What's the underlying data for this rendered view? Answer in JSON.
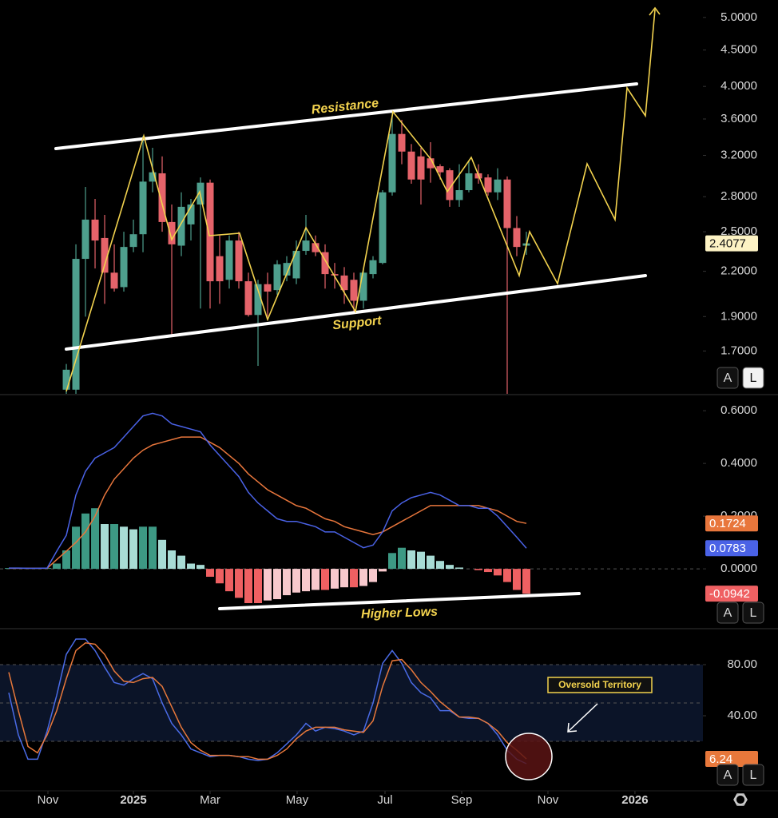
{
  "chart_data": [
    {
      "type": "candlestick",
      "log_scale": true,
      "up_color": "#4e9f8d",
      "down_color": "#e5636a",
      "open": [
        null,
        null,
        null,
        null,
        null,
        null,
        1.5,
        1.5,
        2.29,
        2.6,
        2.45,
        2.19,
        2.09,
        2.38,
        2.48,
        2.94,
        3.02,
        2.58,
        2.39,
        2.56,
        2.73,
        2.93,
        2.31,
        2.14,
        2.43,
        2.13,
        1.91,
        2.11,
        2.07,
        2.17,
        2.15,
        2.35,
        2.41,
        2.34,
        2.18,
        2.17,
        2.14,
        2.0,
        2.18,
        2.26,
        2.84,
        3.43,
        3.24,
        3.19,
        3.17,
        3.09,
        3.05,
        2.77,
        2.86,
        3.02,
        2.98,
        2.84,
        2.96,
        2.53,
        2.39
      ],
      "high": [
        null,
        null,
        null,
        null,
        null,
        null,
        1.63,
        2.4,
        2.89,
        2.78,
        2.64,
        2.4,
        2.5,
        2.6,
        3.41,
        3.28,
        3.19,
        2.73,
        2.84,
        2.78,
        2.98,
        2.96,
        2.47,
        2.47,
        2.5,
        2.19,
        2.14,
        2.19,
        2.28,
        2.31,
        2.43,
        2.64,
        2.47,
        2.4,
        2.26,
        2.23,
        2.19,
        2.22,
        2.31,
        2.86,
        3.68,
        3.59,
        3.32,
        3.28,
        3.34,
        3.11,
        3.07,
        3.11,
        3.15,
        3.11,
        3.01,
        3.07,
        2.99,
        2.63,
        2.5
      ],
      "low": [
        null,
        null,
        null,
        null,
        null,
        null,
        1.48,
        1.48,
        1.9,
        2.22,
        1.98,
        2.06,
        2.06,
        2.34,
        2.34,
        2.84,
        2.5,
        1.79,
        2.31,
        2.43,
        1.95,
        1.95,
        1.98,
        2.08,
        2.08,
        1.9,
        1.62,
        1.9,
        2.04,
        2.13,
        2.11,
        2.32,
        2.31,
        2.08,
        2.08,
        1.98,
        1.93,
        1.95,
        2.15,
        2.25,
        2.81,
        3.11,
        2.92,
        2.73,
        2.93,
        2.96,
        2.71,
        2.71,
        2.84,
        2.92,
        2.81,
        2.77,
        1.48,
        2.31,
        2.32
      ],
      "close": [
        null,
        null,
        null,
        null,
        null,
        null,
        1.6,
        2.29,
        2.6,
        2.43,
        2.19,
        2.08,
        2.38,
        2.48,
        2.94,
        3.03,
        2.58,
        2.4,
        2.71,
        2.73,
        2.93,
        2.13,
        2.13,
        2.43,
        2.13,
        1.91,
        2.11,
        2.06,
        2.25,
        2.26,
        2.35,
        2.43,
        2.34,
        2.18,
        2.17,
        2.07,
        2.0,
        2.19,
        2.28,
        2.84,
        3.43,
        3.24,
        2.96,
        2.96,
        3.07,
        3.03,
        2.77,
        2.86,
        3.02,
        2.97,
        2.84,
        2.96,
        2.53,
        2.38,
        2.4077
      ],
      "ylim": [
        1.48,
        5.29
      ],
      "yticks": [
        {
          "value": 5,
          "label": "5.0000"
        },
        {
          "value": 4.5,
          "label": "4.5000"
        },
        {
          "value": 4,
          "label": "4.0000"
        },
        {
          "value": 3.6,
          "label": "3.6000"
        },
        {
          "value": 3.2,
          "label": "3.2000"
        },
        {
          "value": 2.8,
          "label": "2.8000"
        },
        {
          "value": 2.5,
          "label": "2.5000"
        },
        {
          "value": 2.2,
          "label": "2.2000"
        },
        {
          "value": 1.9,
          "label": "1.9000"
        },
        {
          "value": 1.7,
          "label": "1.7000"
        }
      ],
      "annotations": [
        "Resistance",
        "Support"
      ],
      "buttons": [
        "A",
        "L"
      ]
    },
    {
      "type": "macd",
      "macd": {
        "color": "#4a62e6",
        "values": [
          0.003,
          0.003,
          0.002,
          0.002,
          0.003,
          0.067,
          0.127,
          0.28,
          0.37,
          0.42,
          0.44,
          0.46,
          0.5,
          0.54,
          0.58,
          0.59,
          0.58,
          0.55,
          0.54,
          0.53,
          0.52,
          0.47,
          0.43,
          0.39,
          0.35,
          0.29,
          0.25,
          0.22,
          0.19,
          0.18,
          0.18,
          0.17,
          0.16,
          0.14,
          0.14,
          0.12,
          0.1,
          0.08,
          0.09,
          0.14,
          0.22,
          0.25,
          0.27,
          0.28,
          0.29,
          0.28,
          0.26,
          0.24,
          0.24,
          0.23,
          0.23,
          0.2,
          0.16,
          0.12,
          0.0783
        ]
      },
      "signal": {
        "color": "#e8763c",
        "values": [
          0.002,
          0.002,
          0.002,
          0.002,
          0.002,
          0.035,
          0.067,
          0.1,
          0.14,
          0.2,
          0.28,
          0.34,
          0.38,
          0.42,
          0.45,
          0.47,
          0.48,
          0.49,
          0.5,
          0.5,
          0.5,
          0.48,
          0.46,
          0.43,
          0.4,
          0.36,
          0.33,
          0.3,
          0.28,
          0.26,
          0.24,
          0.23,
          0.21,
          0.19,
          0.18,
          0.16,
          0.15,
          0.14,
          0.13,
          0.14,
          0.16,
          0.18,
          0.2,
          0.22,
          0.24,
          0.24,
          0.24,
          0.24,
          0.24,
          0.24,
          0.23,
          0.22,
          0.2,
          0.18,
          0.1724
        ]
      },
      "histogram": {
        "colors": {
          "up_rising": "#3d9984",
          "up_falling": "#a8dcd5",
          "down_falling": "#ef6062",
          "down_rising": "#f8c9cd"
        },
        "values": [
          0.003,
          0.004,
          0.002,
          0.001,
          0.003,
          0.02,
          0.07,
          0.16,
          0.21,
          0.23,
          0.17,
          0.17,
          0.16,
          0.15,
          0.16,
          0.16,
          0.11,
          0.07,
          0.05,
          0.02,
          0.015,
          -0.03,
          -0.055,
          -0.085,
          -0.11,
          -0.13,
          -0.13,
          -0.12,
          -0.115,
          -0.1,
          -0.09,
          -0.085,
          -0.08,
          -0.08,
          -0.075,
          -0.07,
          -0.07,
          -0.065,
          -0.05,
          -0.01,
          0.06,
          0.08,
          0.07,
          0.065,
          0.05,
          0.03,
          0.015,
          0.005,
          0,
          -0.005,
          -0.012,
          -0.025,
          -0.05,
          -0.08,
          -0.0942
        ]
      },
      "ylim": [
        -0.227,
        0.658
      ],
      "yticks": [
        {
          "value": 0.6,
          "label": "0.6000"
        },
        {
          "value": 0.4,
          "label": "0.4000"
        },
        {
          "value": 0.2,
          "label": "0.2000"
        },
        {
          "value": 0,
          "label": "0.0000"
        }
      ],
      "hlines": [
        0
      ],
      "annotations": [
        "Higher Lows"
      ],
      "buttons": [
        "A",
        "L"
      ]
    },
    {
      "type": "stochastic",
      "series": [
        {
          "color": "#4a6be6",
          "values": [
            58,
            25,
            6,
            6,
            28,
            56,
            88,
            100,
            100,
            91,
            78,
            66,
            64,
            69,
            73,
            69,
            50,
            34,
            25,
            14,
            11,
            8,
            9,
            9,
            8,
            6,
            5,
            6,
            11,
            18,
            25,
            34,
            28,
            31,
            30,
            28,
            25,
            28,
            50,
            81,
            91,
            81,
            66,
            58,
            54,
            44,
            44,
            39,
            38,
            38,
            34,
            25,
            13,
            6,
            2.5
          ]
        },
        {
          "color": "#e8783b",
          "values": [
            74,
            44,
            16,
            11,
            25,
            44,
            69,
            91,
            97,
            96,
            88,
            75,
            67,
            66,
            69,
            70,
            63,
            47,
            31,
            19,
            13,
            9,
            9,
            9,
            8,
            8,
            6,
            6,
            9,
            14,
            22,
            28,
            31,
            31,
            31,
            29,
            28,
            27,
            36,
            63,
            83,
            84,
            76,
            66,
            59,
            51,
            45,
            39,
            39,
            38,
            34,
            28,
            19,
            13,
            6.24
          ]
        }
      ],
      "ylim": [
        -18.75,
        107.5
      ],
      "yticks": [
        {
          "value": 80,
          "label": "80.00"
        },
        {
          "value": 40,
          "label": "40.00"
        }
      ],
      "hlines": [
        80,
        50,
        20
      ],
      "band": [
        20,
        80
      ],
      "band_color": "#0b1428",
      "annotations": [
        "Oversold Territory"
      ],
      "buttons": [
        "A",
        "L"
      ],
      "xlim": [
        -0.92,
        72.42
      ],
      "xticks": [
        {
          "value": 4.08,
          "label": "Nov"
        },
        {
          "value": 13,
          "label": "2025"
        },
        {
          "value": 21,
          "label": "Mar"
        },
        {
          "value": 30.08,
          "label": "May"
        },
        {
          "value": 39.25,
          "label": "Jul"
        },
        {
          "value": 47.25,
          "label": "Sep"
        },
        {
          "value": 56.25,
          "label": "Nov"
        },
        {
          "value": 65.33,
          "label": "2026"
        }
      ]
    }
  ]
}
